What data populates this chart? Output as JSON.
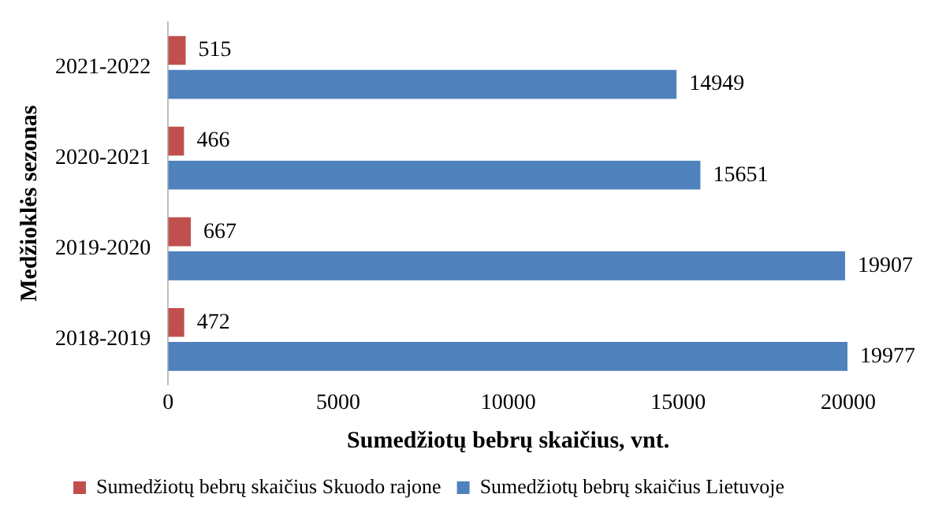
{
  "chart_data": {
    "type": "bar",
    "orientation": "horizontal",
    "xlabel": "Sumedžiotų bebrų skaičius, vnt.",
    "ylabel": "Medžioklės sezonas",
    "categories": [
      "2021-2022",
      "2020-2021",
      "2019-2020",
      "2018-2019"
    ],
    "series": [
      {
        "name": "Sumedžiotų bebrų skaičius Skuodo rajone",
        "color": "#c0504d",
        "values": [
          515,
          466,
          667,
          472
        ]
      },
      {
        "name": "Sumedžiotų bebrų skaičius Lietuvoje",
        "color": "#4f81bd",
        "values": [
          14949,
          15651,
          19907,
          19977
        ]
      }
    ],
    "xlim": [
      0,
      20000
    ],
    "xticks": [
      0,
      5000,
      10000,
      15000,
      20000
    ],
    "grid": false,
    "legend": "bottom",
    "data_labels": true
  }
}
